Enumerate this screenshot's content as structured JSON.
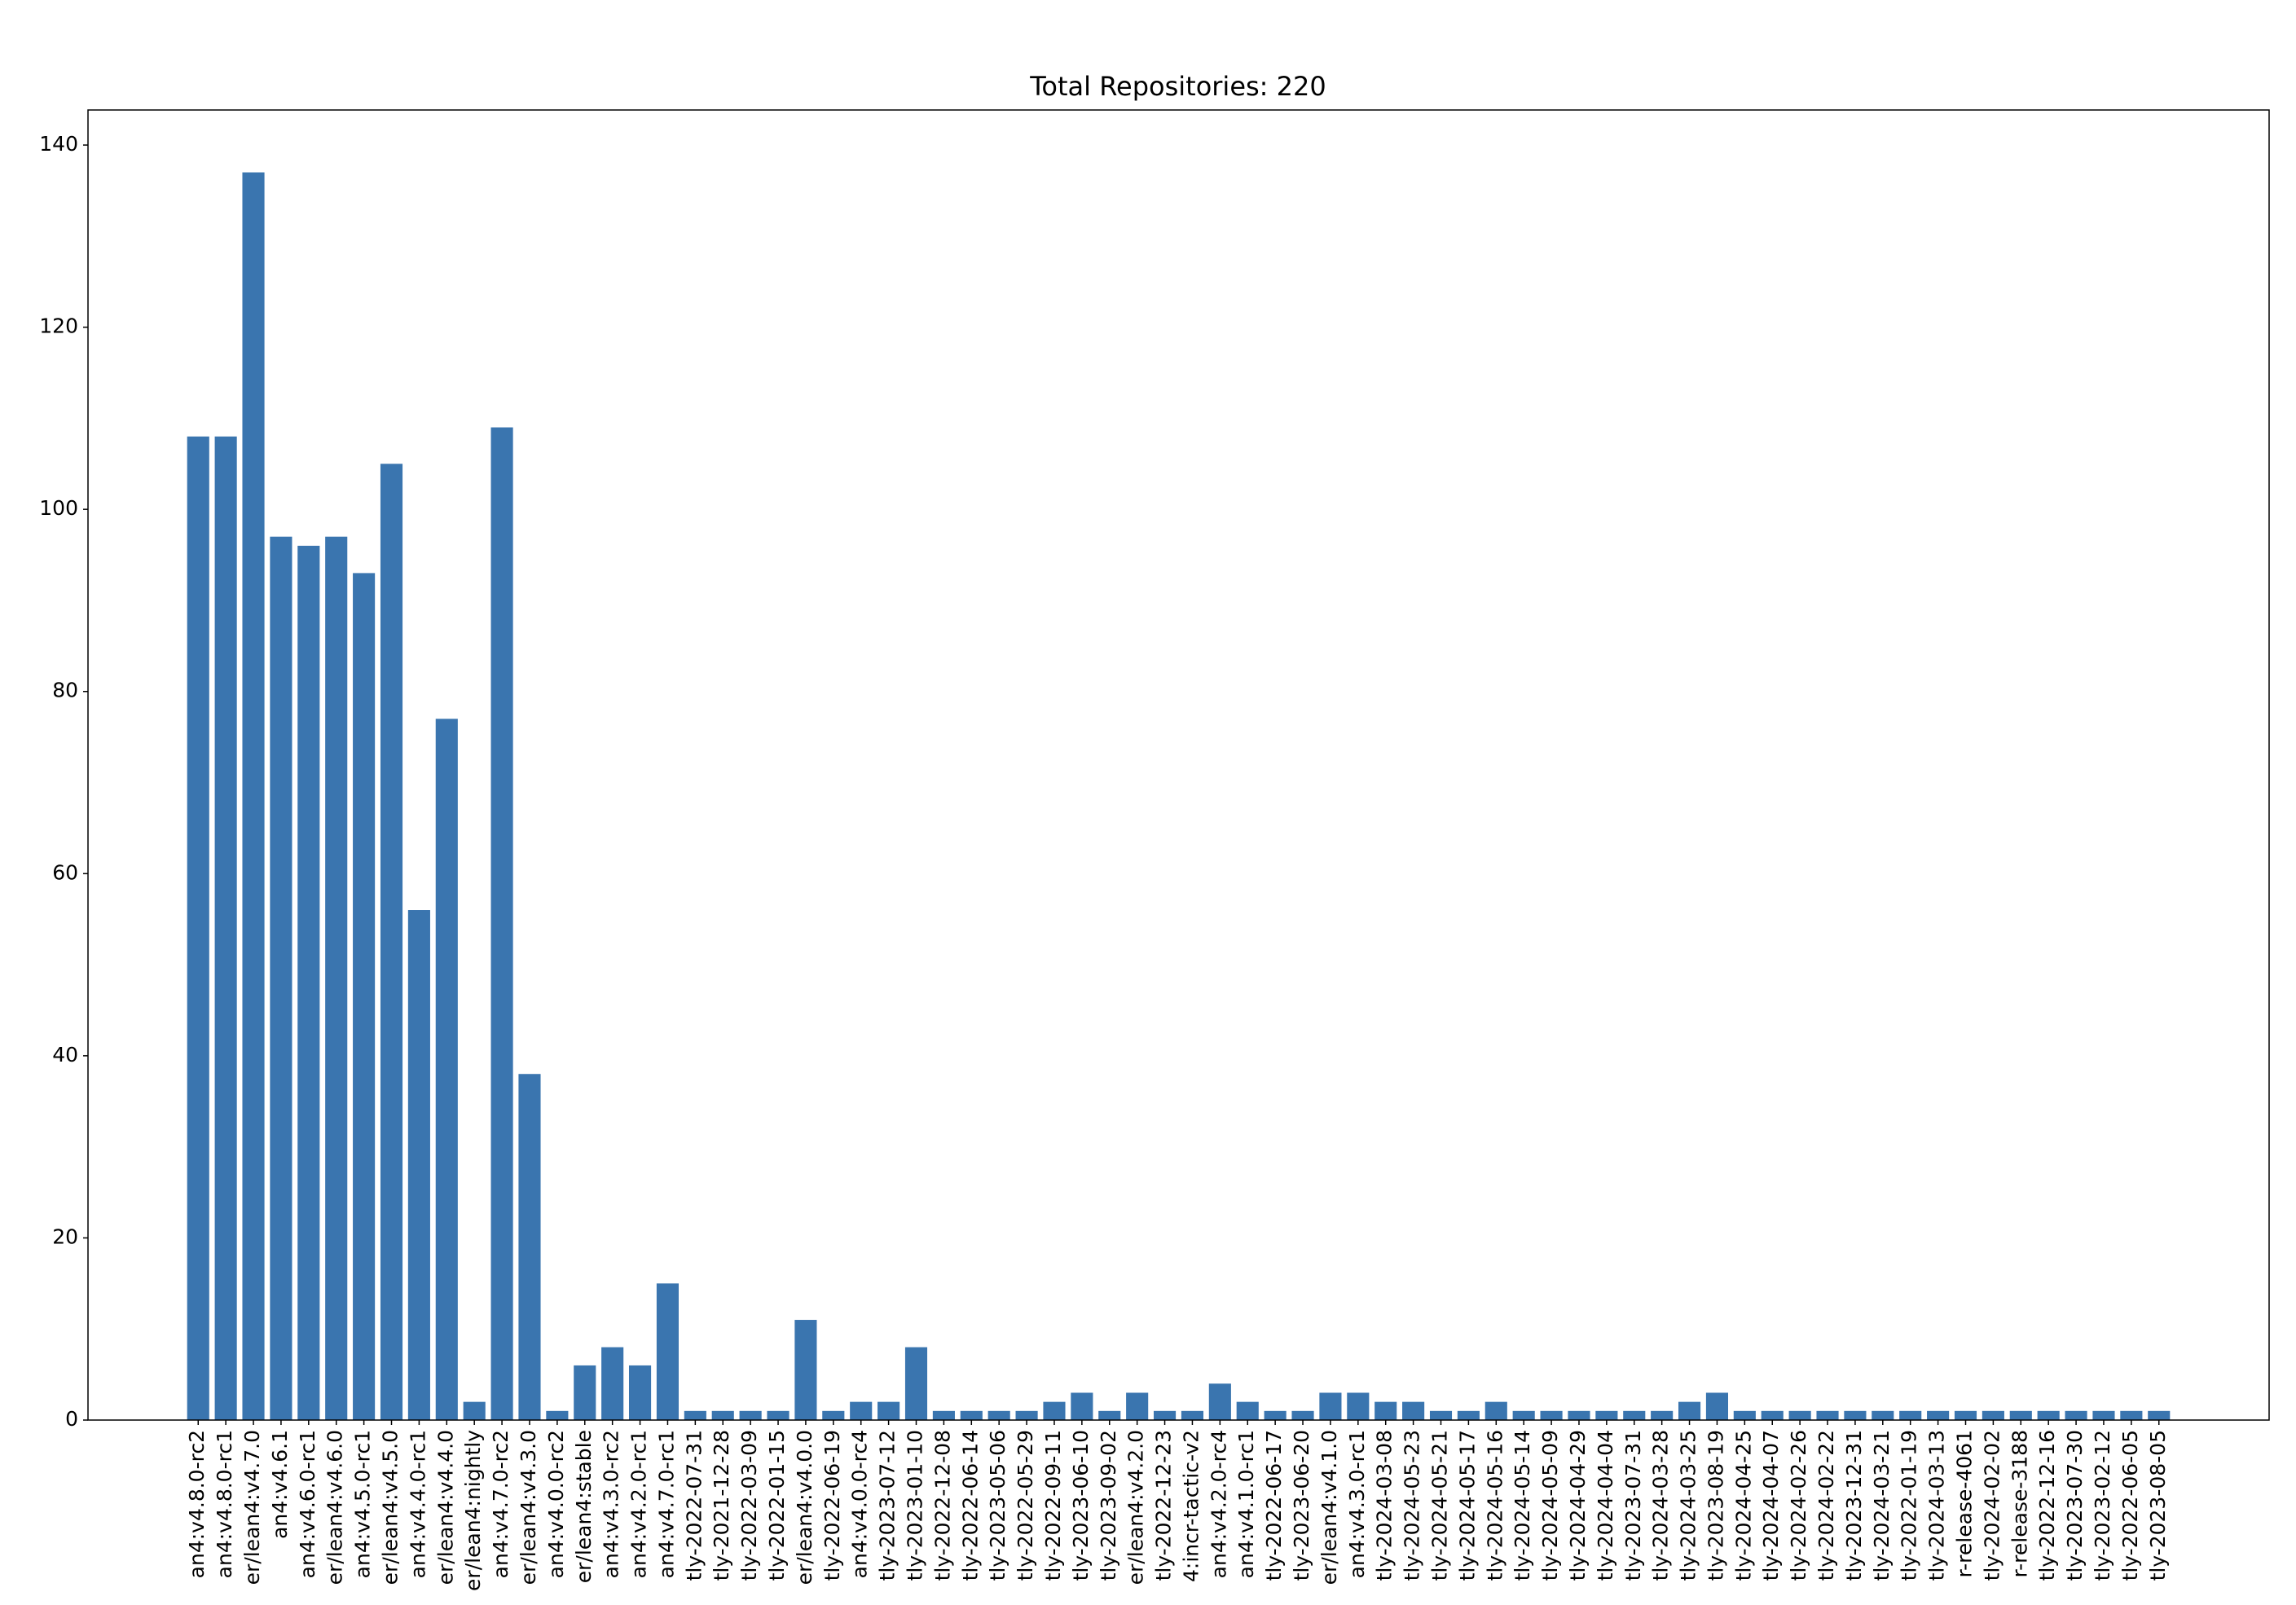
{
  "chart_data": {
    "type": "bar",
    "title": "Total Repositories: 220",
    "categories": [
      "an4:v4.8.0-rc2",
      "an4:v4.8.0-rc1",
      "er/lean4:v4.7.0",
      "an4:v4.6.1",
      "an4:v4.6.0-rc1",
      "er/lean4:v4.6.0",
      "an4:v4.5.0-rc1",
      "er/lean4:v4.5.0",
      "an4:v4.4.0-rc1",
      "er/lean4:v4.4.0",
      "er/lean4:nightly",
      "an4:v4.7.0-rc2",
      "er/lean4:v4.3.0",
      "an4:v4.0.0-rc2",
      "er/lean4:stable",
      "an4:v4.3.0-rc2",
      "an4:v4.2.0-rc1",
      "an4:v4.7.0-rc1",
      "tly-2022-07-31",
      "tly-2021-12-28",
      "tly-2022-03-09",
      "tly-2022-01-15",
      "er/lean4:v4.0.0",
      "tly-2022-06-19",
      "an4:v4.0.0-rc4",
      "tly-2023-07-12",
      "tly-2023-01-10",
      "tly-2022-12-08",
      "tly-2022-06-14",
      "tly-2023-05-06",
      "tly-2022-05-29",
      "tly-2022-09-11",
      "tly-2023-06-10",
      "tly-2023-09-02",
      "er/lean4:v4.2.0",
      "tly-2022-12-23",
      "4:incr-tactic-v2",
      "an4:v4.2.0-rc4",
      "an4:v4.1.0-rc1",
      "tly-2022-06-17",
      "tly-2023-06-20",
      "er/lean4:v4.1.0",
      "an4:v4.3.0-rc1",
      "tly-2024-03-08",
      "tly-2024-05-23",
      "tly-2024-05-21",
      "tly-2024-05-17",
      "tly-2024-05-16",
      "tly-2024-05-14",
      "tly-2024-05-09",
      "tly-2024-04-29",
      "tly-2024-04-04",
      "tly-2023-07-31",
      "tly-2024-03-28",
      "tly-2024-03-25",
      "tly-2023-08-19",
      "tly-2024-04-25",
      "tly-2024-04-07",
      "tly-2024-02-26",
      "tly-2024-02-22",
      "tly-2023-12-31",
      "tly-2024-03-21",
      "tly-2022-01-19",
      "tly-2024-03-13",
      "r-release-4061",
      "tly-2024-02-02",
      "r-release-3188",
      "tly-2022-12-16",
      "tly-2023-07-30",
      "tly-2023-02-12",
      "tly-2022-06-05",
      "tly-2023-08-05"
    ],
    "values": [
      108,
      108,
      137,
      97,
      96,
      97,
      93,
      105,
      56,
      77,
      2,
      109,
      38,
      1,
      6,
      8,
      6,
      15,
      1,
      1,
      1,
      1,
      11,
      1,
      2,
      2,
      8,
      1,
      1,
      1,
      1,
      2,
      3,
      1,
      3,
      1,
      1,
      4,
      2,
      1,
      1,
      3,
      3,
      2,
      2,
      1,
      1,
      2,
      1,
      1,
      1,
      1,
      1,
      1,
      2,
      3,
      1,
      1,
      1,
      1,
      1,
      1,
      1,
      1,
      1,
      1,
      1,
      1,
      1,
      1,
      1,
      1
    ],
    "color": "#3a75af",
    "ylim": [
      0,
      143.85
    ],
    "yticks": [
      0,
      20,
      40,
      60,
      80,
      100,
      120,
      140
    ],
    "grid": false
  }
}
